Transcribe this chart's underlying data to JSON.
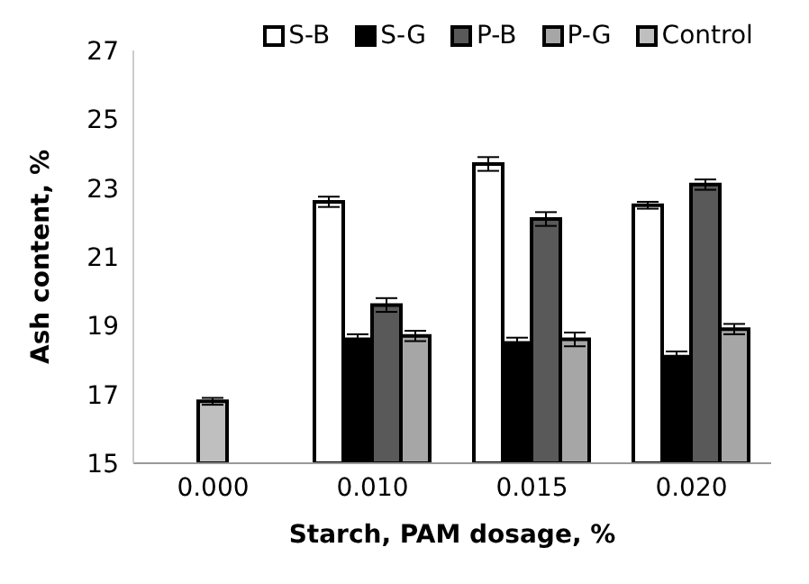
{
  "chart_data": {
    "type": "bar",
    "xlabel": "Starch, PAM dosage, %",
    "ylabel": "Ash content, %",
    "categories": [
      "0.000",
      "0.010",
      "0.015",
      "0.020"
    ],
    "series": [
      {
        "name": "S-B",
        "color": "#ffffff",
        "values": [
          null,
          22.6,
          23.7,
          22.5
        ],
        "errors": [
          null,
          0.15,
          0.2,
          0.1
        ]
      },
      {
        "name": "S-G",
        "color": "#000000",
        "values": [
          null,
          18.6,
          18.5,
          18.1
        ],
        "errors": [
          null,
          0.15,
          0.15,
          0.15
        ]
      },
      {
        "name": "P-B",
        "color": "#595959",
        "values": [
          null,
          19.6,
          22.1,
          23.1
        ],
        "errors": [
          null,
          0.2,
          0.2,
          0.15
        ]
      },
      {
        "name": "P-G",
        "color": "#a6a6a6",
        "values": [
          null,
          18.7,
          18.6,
          18.9
        ],
        "errors": [
          null,
          0.15,
          0.2,
          0.15
        ]
      },
      {
        "name": "Control",
        "color": "#bfbfbf",
        "values": [
          16.8,
          null,
          null,
          null
        ],
        "errors": [
          0.1,
          null,
          null,
          null
        ]
      }
    ],
    "ylim": [
      15,
      27
    ],
    "yticks": [
      15,
      17,
      19,
      21,
      23,
      25,
      27
    ],
    "grid": false,
    "legend": "top"
  }
}
